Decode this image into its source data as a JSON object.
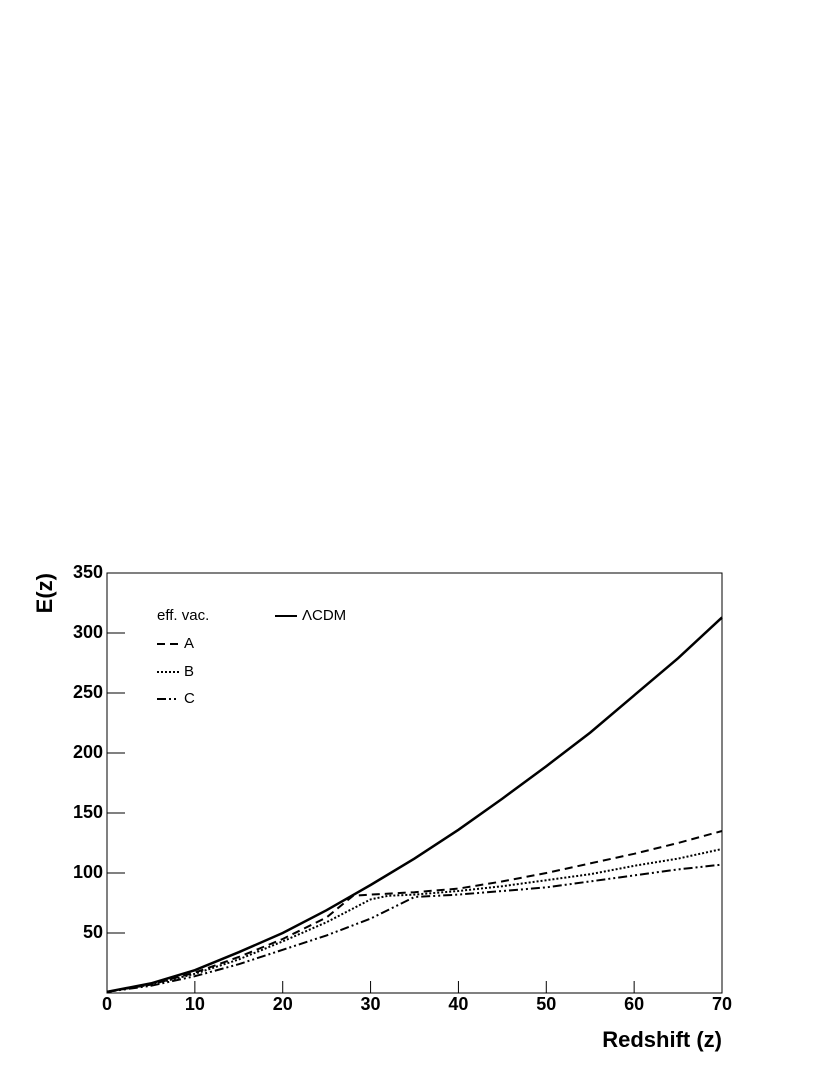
{
  "chart_data": {
    "type": "line",
    "xlabel": "Redshift (z)",
    "ylabel": "E(z)",
    "xlim": [
      0,
      70
    ],
    "ylim": [
      0,
      350
    ],
    "xticks": [
      0,
      10,
      20,
      30,
      40,
      50,
      60,
      70
    ],
    "yticks": [
      50,
      100,
      150,
      200,
      250,
      300,
      350
    ],
    "legend_title": "eff. vac.",
    "series": [
      {
        "name": "ΛCDM",
        "color": "#000000",
        "style": "solid",
        "x": [
          0,
          5,
          10,
          15,
          20,
          25,
          30,
          35,
          40,
          45,
          50,
          55,
          60,
          65,
          70
        ],
        "values": [
          1,
          8,
          19,
          34,
          50,
          69,
          90,
          112,
          136,
          162,
          189,
          217,
          248,
          279,
          313
        ]
      },
      {
        "name": "A",
        "color": "#000000",
        "style": "dashed",
        "x": [
          0,
          5,
          10,
          15,
          20,
          25,
          28,
          30,
          35,
          40,
          45,
          50,
          55,
          60,
          65,
          70
        ],
        "values": [
          1,
          7,
          17,
          30,
          45,
          63,
          81,
          82,
          84,
          87,
          93,
          100,
          108,
          116,
          125,
          135
        ]
      },
      {
        "name": "B",
        "color": "#000000",
        "style": "dotted",
        "x": [
          0,
          5,
          10,
          15,
          20,
          25,
          30,
          32,
          35,
          40,
          45,
          50,
          55,
          60,
          65,
          70
        ],
        "values": [
          1,
          7,
          16,
          28,
          43,
          59,
          78,
          81,
          82,
          85,
          89,
          94,
          99,
          106,
          112,
          120
        ]
      },
      {
        "name": "C",
        "color": "#000000",
        "style": "dashdot",
        "x": [
          0,
          5,
          10,
          15,
          20,
          25,
          30,
          35,
          40,
          45,
          50,
          55,
          60,
          65,
          70
        ],
        "values": [
          1,
          6,
          14,
          24,
          36,
          48,
          62,
          80,
          82,
          85,
          88,
          93,
          98,
          103,
          107
        ]
      }
    ]
  }
}
